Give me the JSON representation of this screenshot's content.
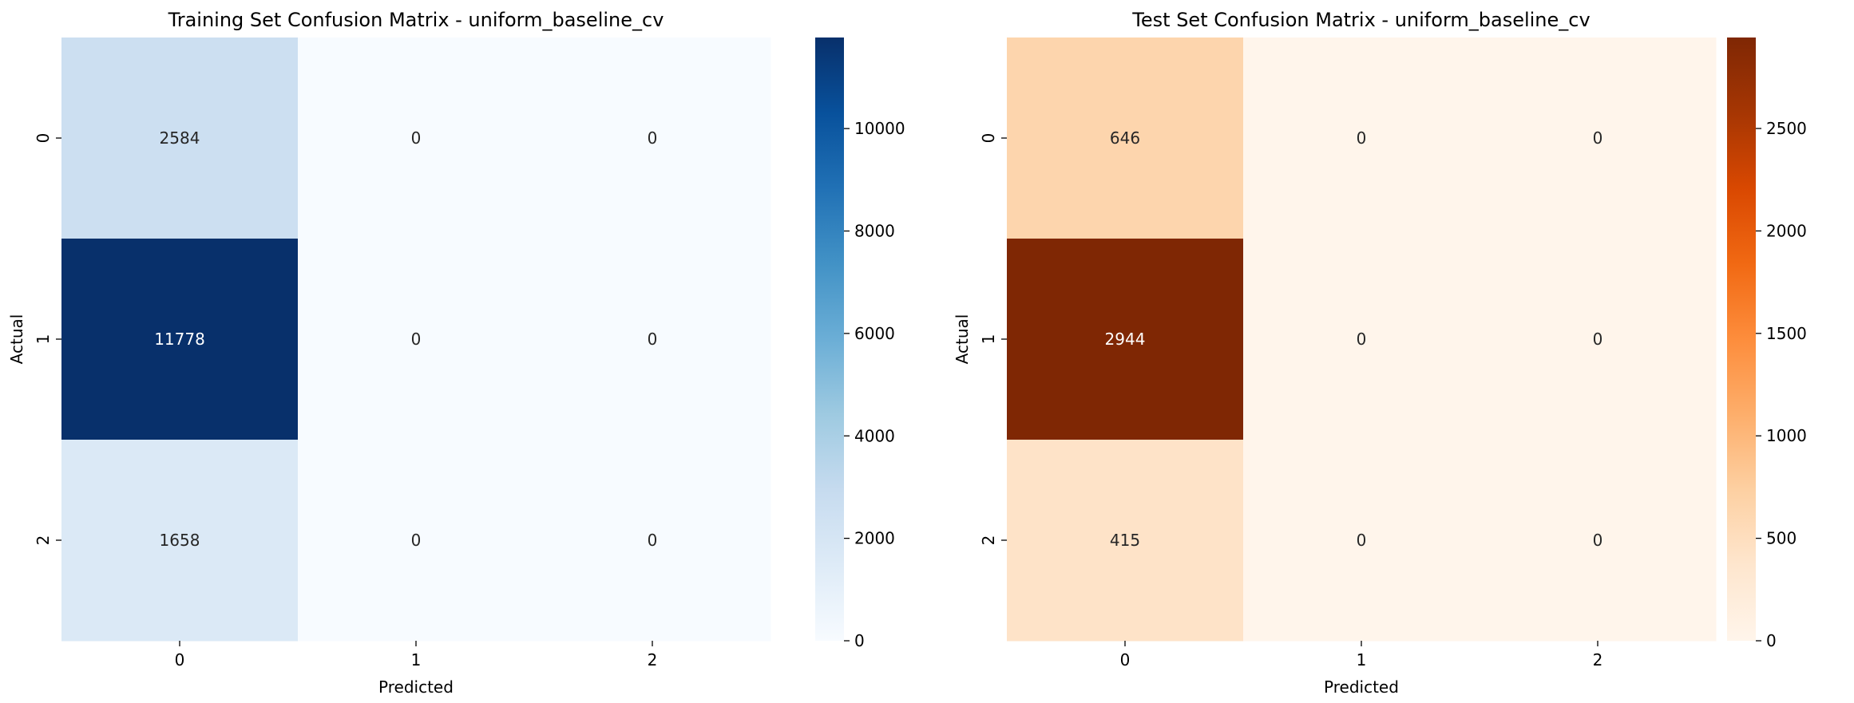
{
  "chart_data": [
    {
      "type": "heatmap",
      "title": "Training Set Confusion Matrix - uniform_baseline_cv",
      "xlabel": "Predicted",
      "ylabel": "Actual",
      "x_categories": [
        "0",
        "1",
        "2"
      ],
      "y_categories": [
        "0",
        "1",
        "2"
      ],
      "values": [
        [
          2584,
          0,
          0
        ],
        [
          11778,
          0,
          0
        ],
        [
          1658,
          0,
          0
        ]
      ],
      "colormap": "Blues",
      "colormap_low": "#f7fbff",
      "colormap_high": "#08306b",
      "colorbar_ticks": [
        0,
        2000,
        4000,
        6000,
        8000,
        10000
      ],
      "colorbar_range": [
        0,
        11778
      ]
    },
    {
      "type": "heatmap",
      "title": "Test Set Confusion Matrix - uniform_baseline_cv",
      "xlabel": "Predicted",
      "ylabel": "Actual",
      "x_categories": [
        "0",
        "1",
        "2"
      ],
      "y_categories": [
        "0",
        "1",
        "2"
      ],
      "values": [
        [
          646,
          0,
          0
        ],
        [
          2944,
          0,
          0
        ],
        [
          415,
          0,
          0
        ]
      ],
      "colormap": "Oranges",
      "colormap_low": "#fff5eb",
      "colormap_high": "#7f2704",
      "colorbar_ticks": [
        0,
        500,
        1000,
        1500,
        2000,
        2500
      ],
      "colorbar_range": [
        0,
        2944
      ]
    }
  ]
}
